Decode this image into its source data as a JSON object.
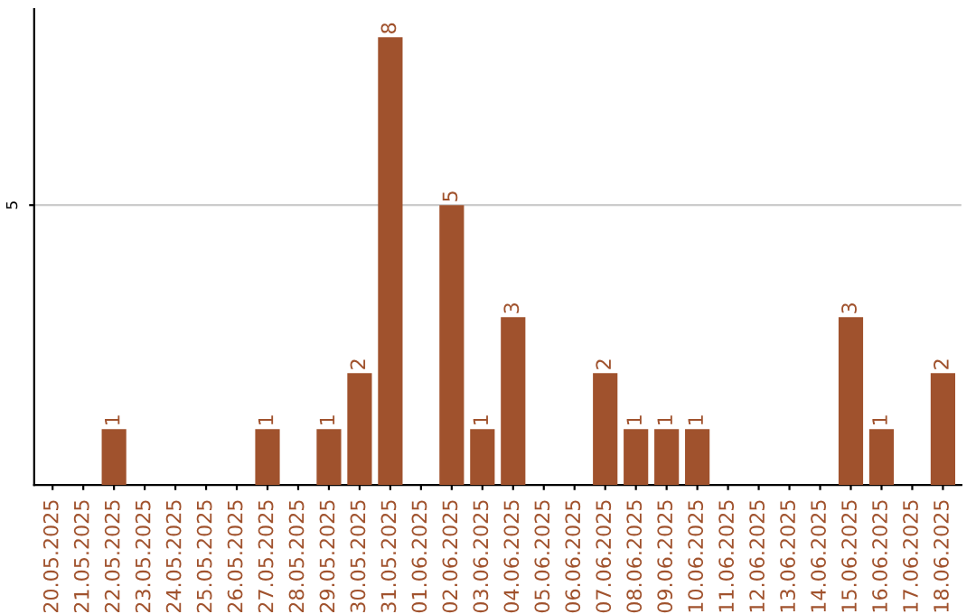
{
  "chart_data": {
    "type": "bar",
    "categories": [
      "20.05.2025",
      "21.05.2025",
      "22.05.2025",
      "23.05.2025",
      "24.05.2025",
      "25.05.2025",
      "26.05.2025",
      "27.05.2025",
      "28.05.2025",
      "29.05.2025",
      "30.05.2025",
      "31.05.2025",
      "01.06.2025",
      "02.06.2025",
      "03.06.2025",
      "04.06.2025",
      "05.06.2025",
      "06.06.2025",
      "07.06.2025",
      "08.06.2025",
      "09.06.2025",
      "10.06.2025",
      "11.06.2025",
      "12.06.2025",
      "13.06.2025",
      "14.06.2025",
      "15.06.2025",
      "16.06.2025",
      "17.06.2025",
      "18.06.2025"
    ],
    "values": [
      0,
      0,
      1,
      0,
      0,
      0,
      0,
      1,
      0,
      1,
      2,
      8,
      0,
      5,
      1,
      3,
      0,
      0,
      2,
      1,
      1,
      1,
      0,
      0,
      0,
      0,
      3,
      1,
      0,
      2
    ],
    "value_labels": [
      null,
      null,
      "1",
      null,
      null,
      null,
      null,
      "1",
      null,
      "1",
      "2",
      "8",
      null,
      "5",
      "1",
      "3",
      null,
      null,
      "2",
      "1",
      "1",
      "1",
      null,
      null,
      null,
      null,
      "3",
      "1",
      null,
      "2"
    ],
    "color": "#a0522d",
    "ylim": [
      0,
      8.5
    ],
    "yticks": [
      5
    ],
    "grid": "y"
  }
}
